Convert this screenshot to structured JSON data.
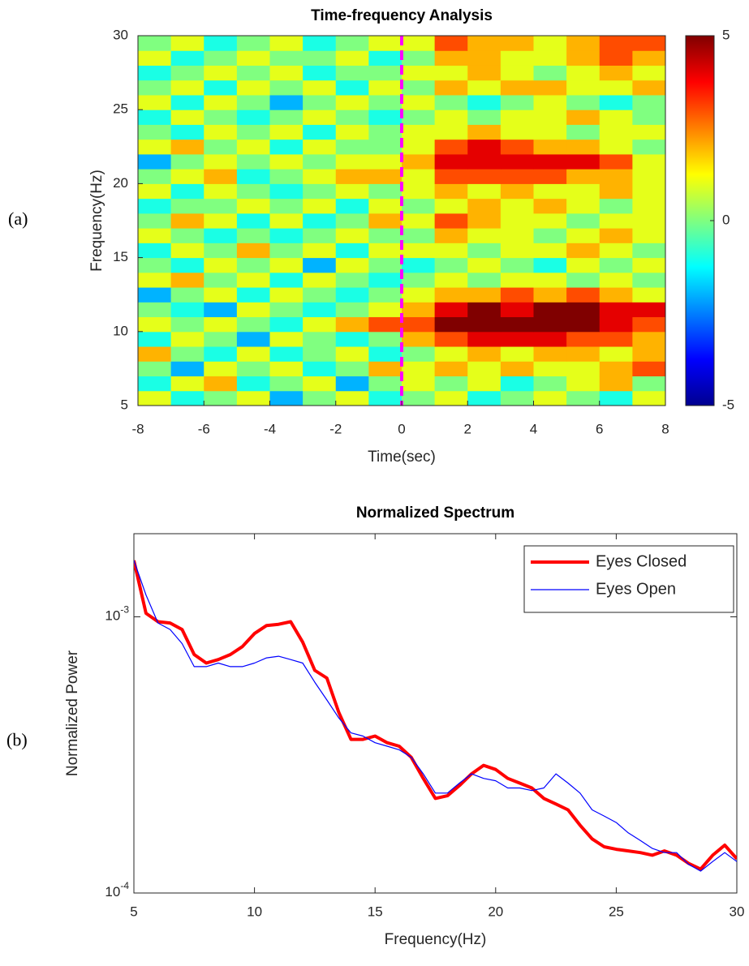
{
  "chart_data": [
    {
      "type": "heatmap",
      "title": "Time-frequency Analysis",
      "xlabel": "Time(sec)",
      "ylabel": "Frequency(Hz)",
      "panel_label": "(a)",
      "colormap": "jet",
      "xbins": [
        -8,
        -7,
        -6,
        -5,
        -4,
        -3,
        -2,
        -1,
        0,
        1,
        2,
        3,
        4,
        5,
        6,
        7,
        8
      ],
      "ybins": [
        5,
        6,
        7,
        8,
        9,
        10,
        11,
        12,
        13,
        14,
        15,
        16,
        17,
        18,
        19,
        20,
        21,
        22,
        23,
        24,
        25,
        26,
        27,
        28,
        29,
        30
      ],
      "values": [
        [
          1,
          -1,
          0,
          1,
          -2,
          0,
          1,
          -1,
          0,
          1,
          -1,
          0,
          1,
          0,
          -1,
          1
        ],
        [
          -1,
          1,
          2,
          -1,
          0,
          1,
          -2,
          0,
          1,
          0,
          1,
          -1,
          0,
          1,
          2,
          0
        ],
        [
          0,
          -2,
          1,
          0,
          1,
          -1,
          0,
          2,
          1,
          2,
          1,
          2,
          1,
          1,
          2,
          3
        ],
        [
          2,
          0,
          -1,
          1,
          -1,
          0,
          1,
          -1,
          0,
          1,
          2,
          1,
          2,
          2,
          1,
          2
        ],
        [
          -1,
          1,
          0,
          -2,
          1,
          0,
          -1,
          0,
          2,
          3,
          4,
          4,
          4,
          3,
          3,
          2
        ],
        [
          1,
          0,
          1,
          0,
          -1,
          1,
          2,
          3,
          3,
          5,
          5,
          5,
          5,
          5,
          4,
          3
        ],
        [
          0,
          -1,
          -2,
          1,
          0,
          -1,
          0,
          1,
          2,
          4,
          5,
          4,
          5,
          5,
          4,
          4
        ],
        [
          -2,
          0,
          1,
          -1,
          1,
          0,
          -1,
          0,
          1,
          2,
          2,
          3,
          2,
          3,
          2,
          1
        ],
        [
          1,
          2,
          0,
          1,
          -1,
          1,
          0,
          -1,
          0,
          1,
          0,
          1,
          1,
          0,
          1,
          0
        ],
        [
          0,
          -1,
          1,
          0,
          1,
          -2,
          1,
          0,
          -1,
          0,
          1,
          0,
          -1,
          1,
          0,
          1
        ],
        [
          -1,
          1,
          0,
          2,
          0,
          1,
          -1,
          1,
          1,
          1,
          0,
          1,
          1,
          2,
          1,
          0
        ],
        [
          1,
          0,
          -1,
          0,
          -1,
          0,
          1,
          0,
          0,
          2,
          1,
          1,
          0,
          1,
          2,
          1
        ],
        [
          0,
          2,
          1,
          -1,
          1,
          -1,
          0,
          2,
          1,
          3,
          2,
          1,
          1,
          0,
          1,
          1
        ],
        [
          -1,
          0,
          0,
          1,
          0,
          1,
          -1,
          1,
          0,
          1,
          2,
          1,
          2,
          1,
          0,
          1
        ],
        [
          1,
          -1,
          1,
          0,
          -1,
          0,
          1,
          0,
          1,
          2,
          1,
          2,
          1,
          1,
          2,
          1
        ],
        [
          0,
          1,
          2,
          -1,
          0,
          1,
          2,
          2,
          1,
          3,
          3,
          3,
          3,
          2,
          2,
          1
        ],
        [
          -2,
          0,
          1,
          0,
          1,
          0,
          1,
          1,
          2,
          4,
          4,
          4,
          4,
          4,
          3,
          1
        ],
        [
          1,
          2,
          0,
          1,
          -1,
          1,
          0,
          0,
          1,
          3,
          4,
          3,
          2,
          2,
          1,
          0
        ],
        [
          0,
          -1,
          1,
          0,
          1,
          -1,
          1,
          0,
          1,
          1,
          2,
          1,
          1,
          0,
          1,
          1
        ],
        [
          -1,
          1,
          0,
          -1,
          0,
          1,
          0,
          -1,
          0,
          1,
          0,
          1,
          1,
          2,
          1,
          0
        ],
        [
          1,
          -1,
          1,
          0,
          -2,
          0,
          1,
          0,
          1,
          0,
          -1,
          0,
          1,
          0,
          -1,
          0
        ],
        [
          0,
          1,
          -1,
          1,
          0,
          1,
          -1,
          1,
          0,
          2,
          1,
          2,
          2,
          1,
          1,
          2
        ],
        [
          -1,
          0,
          1,
          0,
          1,
          -1,
          0,
          0,
          1,
          1,
          2,
          1,
          0,
          1,
          2,
          1
        ],
        [
          1,
          -1,
          0,
          1,
          0,
          0,
          1,
          -1,
          0,
          2,
          2,
          1,
          1,
          2,
          3,
          2
        ],
        [
          0,
          1,
          -1,
          0,
          1,
          -1,
          0,
          1,
          1,
          3,
          2,
          2,
          1,
          2,
          3,
          3
        ]
      ],
      "xlim": [
        -8,
        8
      ],
      "ylim": [
        5,
        30
      ],
      "xticks": [
        -8,
        -6,
        -4,
        -2,
        0,
        2,
        4,
        6,
        8
      ],
      "yticks": [
        5,
        10,
        15,
        20,
        25,
        30
      ],
      "clim": [
        -5,
        5
      ],
      "cticks": [
        -5,
        0,
        5
      ],
      "vline": {
        "x": 0,
        "color": "#ff00ff"
      }
    },
    {
      "type": "line",
      "title": "Normalized Spectrum",
      "xlabel": "Frequency(Hz)",
      "ylabel": "Normalized Power",
      "panel_label": "(b)",
      "yscale": "log",
      "legend": "upper right",
      "x": [
        5,
        5.5,
        6,
        6.5,
        7,
        7.5,
        8,
        8.5,
        9,
        9.5,
        10,
        10.5,
        11,
        11.5,
        12,
        12.5,
        13,
        13.5,
        14,
        14.5,
        15,
        15.5,
        16,
        16.5,
        17,
        17.5,
        18,
        18.5,
        19,
        19.5,
        20,
        20.5,
        21,
        21.5,
        22,
        22.5,
        23,
        23.5,
        24,
        24.5,
        25,
        25.5,
        26,
        26.5,
        27,
        27.5,
        28,
        28.5,
        29,
        29.5,
        30
      ],
      "series": [
        {
          "name": "Eyes Closed",
          "color": "#ff0000",
          "width": 4,
          "values": [
            0.0016,
            0.00103,
            0.00096,
            0.00095,
            0.0009,
            0.00073,
            0.00068,
            0.0007,
            0.00073,
            0.00078,
            0.00087,
            0.00093,
            0.00094,
            0.00096,
            0.00081,
            0.00064,
            0.0006,
            0.00045,
            0.00036,
            0.00036,
            0.00037,
            0.00035,
            0.00034,
            0.00031,
            0.00026,
            0.00022,
            0.000225,
            0.000245,
            0.00027,
            0.00029,
            0.00028,
            0.00026,
            0.00025,
            0.00024,
            0.00022,
            0.00021,
            0.0002,
            0.000176,
            0.000157,
            0.000147,
            0.000144,
            0.000142,
            0.00014,
            0.000137,
            0.000142,
            0.000137,
            0.000128,
            0.000122,
            0.000137,
            0.000149,
            0.000133
          ]
        },
        {
          "name": "Eyes Open",
          "color": "#0000ff",
          "width": 1.2,
          "values": [
            0.0016,
            0.0012,
            0.00095,
            0.0009,
            0.0008,
            0.00066,
            0.00066,
            0.00068,
            0.00066,
            0.00066,
            0.00068,
            0.00071,
            0.00072,
            0.0007,
            0.00068,
            0.00058,
            0.0005,
            0.00043,
            0.00038,
            0.00037,
            0.00035,
            0.00034,
            0.00033,
            0.00031,
            0.00027,
            0.00023,
            0.00023,
            0.00025,
            0.00027,
            0.00026,
            0.000255,
            0.00024,
            0.00024,
            0.000235,
            0.00024,
            0.00027,
            0.00025,
            0.00023,
            0.0002,
            0.00019,
            0.00018,
            0.000165,
            0.000155,
            0.000145,
            0.00014,
            0.00014,
            0.000127,
            0.00012,
            0.00013,
            0.00014,
            0.00013
          ]
        }
      ],
      "xlim": [
        5,
        30
      ],
      "ylim": [
        0.0001,
        0.002
      ],
      "xticks": [
        5,
        10,
        15,
        20,
        25,
        30
      ],
      "yticks": [
        {
          "value": 0.0001,
          "label": "10^-4"
        },
        {
          "value": 0.001,
          "label": "10^-3"
        }
      ]
    }
  ]
}
